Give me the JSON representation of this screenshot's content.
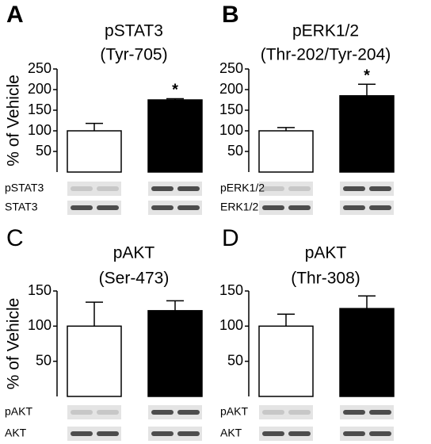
{
  "chart_data": [
    {
      "type": "bar",
      "panel_label": "A",
      "title": "pSTAT3",
      "subtitle": "(Tyr-705)",
      "ylabel": "% of Vehicle",
      "values": [
        100,
        175
      ],
      "errors": [
        18,
        3
      ],
      "colors": [
        "#ffffff",
        "#000000"
      ],
      "annotations": [
        null,
        "*"
      ],
      "ylim": [
        0,
        250
      ],
      "yticks": [
        50,
        100,
        150,
        200,
        250
      ],
      "blot_labels": [
        "pSTAT3",
        "STAT3"
      ]
    },
    {
      "type": "bar",
      "panel_label": "B",
      "title": "pERK1/2",
      "subtitle": "(Thr-202/Tyr-204)",
      "values": [
        100,
        185
      ],
      "errors": [
        8,
        28
      ],
      "colors": [
        "#ffffff",
        "#000000"
      ],
      "annotations": [
        null,
        "*"
      ],
      "ylim": [
        0,
        250
      ],
      "yticks": [
        50,
        100,
        150,
        200,
        250
      ],
      "blot_labels": [
        "pERK1/2",
        "ERK1/2"
      ]
    },
    {
      "type": "bar",
      "panel_label": "C",
      "title": "pAKT",
      "subtitle": "(Ser-473)",
      "ylabel": "% of Vehicle",
      "values": [
        100,
        122
      ],
      "errors": [
        34,
        14
      ],
      "colors": [
        "#ffffff",
        "#000000"
      ],
      "ylim": [
        0,
        150
      ],
      "yticks": [
        50,
        100,
        150
      ],
      "blot_labels": [
        "pAKT",
        "AKT"
      ]
    },
    {
      "type": "bar",
      "panel_label": "D",
      "title": "pAKT",
      "subtitle": "(Thr-308)",
      "values": [
        100,
        125
      ],
      "errors": [
        17,
        18
      ],
      "colors": [
        "#ffffff",
        "#000000"
      ],
      "ylim": [
        0,
        150
      ],
      "yticks": [
        50,
        100,
        150
      ],
      "blot_labels": [
        "pAKT",
        "AKT"
      ]
    }
  ]
}
